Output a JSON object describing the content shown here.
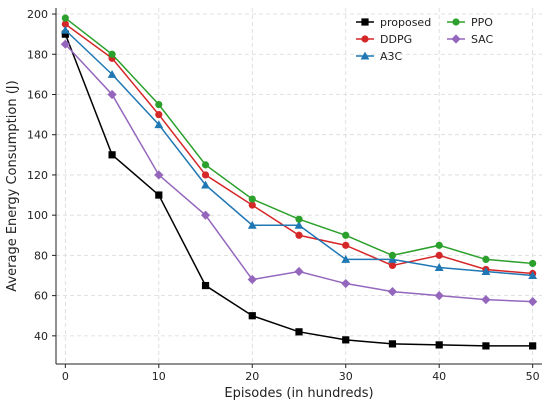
{
  "chart_data": {
    "type": "line",
    "xlabel": "Episodes (in hundreds)",
    "ylabel": "Average Energy Consumption (J)",
    "xlim": [
      -1,
      51
    ],
    "ylim": [
      26,
      203
    ],
    "xticks": [
      0,
      10,
      20,
      30,
      40,
      50
    ],
    "yticks": [
      40,
      60,
      80,
      100,
      120,
      140,
      160,
      180,
      200
    ],
    "grid": true,
    "grid_style": "dashed",
    "legend_position": "top-right",
    "x": [
      0,
      5,
      10,
      15,
      20,
      25,
      30,
      35,
      40,
      45,
      50
    ],
    "series": [
      {
        "name": "proposed",
        "color": "#000000",
        "marker": "square",
        "values": [
          190,
          130,
          110,
          65,
          50,
          42,
          38,
          36,
          35.5,
          35,
          35
        ]
      },
      {
        "name": "DDPG",
        "color": "#d62728",
        "marker": "circle",
        "values": [
          195,
          178,
          150,
          120,
          105,
          90,
          85,
          75,
          80,
          73,
          71
        ]
      },
      {
        "name": "A3C",
        "color": "#1f77b4",
        "marker": "triangle",
        "values": [
          192,
          170,
          145,
          115,
          95,
          95,
          78,
          78,
          74,
          72,
          70
        ]
      },
      {
        "name": "PPO",
        "color": "#2ca02c",
        "marker": "circle",
        "values": [
          198,
          180,
          155,
          125,
          108,
          98,
          90,
          80,
          85,
          78,
          76
        ]
      },
      {
        "name": "SAC",
        "color": "#9467bd",
        "marker": "diamond",
        "values": [
          185,
          160,
          120,
          100,
          68,
          72,
          66,
          62,
          60,
          58,
          57
        ]
      }
    ]
  }
}
